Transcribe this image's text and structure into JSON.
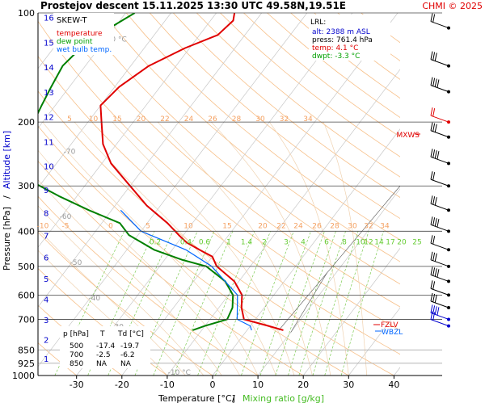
{
  "header": {
    "title": "Prostejov   descent   15.11.2025 13:30 UTC  49.58N,19.51E",
    "copyright": "CHMI © 2025"
  },
  "legend": {
    "title": "SKEW-T",
    "items": [
      {
        "label": "temperature",
        "color": "#e00000"
      },
      {
        "label": "dew point",
        "color": "#008000"
      },
      {
        "label": "wet bulb temp.",
        "color": "#0066ff"
      }
    ]
  },
  "lrl": {
    "title": "LRL:",
    "lines": [
      {
        "text": "alt: 2388 m ASL",
        "color": "#0000cc"
      },
      {
        "text": "press: 761.4 hPa",
        "color": "#000000"
      },
      {
        "text": "temp: 4.1 °C",
        "color": "#e00000"
      },
      {
        "text": "dwpt: -3.3 °C",
        "color": "#00a000"
      }
    ]
  },
  "markers": {
    "mxws": "MXWS",
    "fzlv": "FZLV",
    "wbzl": "WBZL"
  },
  "table": {
    "headers": [
      "p [hPa]",
      "T",
      "Td [°C]"
    ],
    "rows": [
      [
        "500",
        "-17.4",
        "-19.7"
      ],
      [
        "700",
        "-2.5",
        "-6.2"
      ],
      [
        "850",
        "NA",
        "NA"
      ]
    ]
  },
  "axes": {
    "xlabel_temp": "Temperature [°C]",
    "xlabel_sep": "/",
    "xlabel_mix": "Mixing ratio [g/kg]",
    "ylabel_pres": "Pressure [hPa]",
    "ylabel_sep": "/",
    "ylabel_alt": "Altitude [km]"
  },
  "chart_data": {
    "type": "line",
    "diagram": "skew-t",
    "pressure_levels": [
      100,
      200,
      300,
      400,
      500,
      600,
      700,
      850,
      925,
      1000
    ],
    "pressure_lines_grey": [
      850,
      925
    ],
    "x_ticks": [
      -30,
      -20,
      -10,
      0,
      10,
      20,
      30,
      40
    ],
    "xlim": [
      -35,
      50
    ],
    "ylim": [
      1000,
      100
    ],
    "altitude_ticks_km": [
      1,
      2,
      3,
      4,
      5,
      6,
      7,
      8,
      9,
      10,
      11,
      12,
      13,
      14,
      15,
      16
    ],
    "isotherm_labels": [
      {
        "t": -80,
        "text": "-80 °C"
      },
      {
        "t": -70,
        "text": "-70"
      },
      {
        "t": -60,
        "text": "-60"
      },
      {
        "t": -50,
        "text": "-50"
      },
      {
        "t": -40,
        "text": "-40"
      },
      {
        "t": -30,
        "text": "-30"
      },
      {
        "t": -20,
        "text": "-20"
      },
      {
        "t": -10,
        "text": "-10 °C"
      }
    ],
    "adiabat_labels_200": [
      "5",
      "10",
      "15",
      "20",
      "22",
      "24",
      "26",
      "28",
      "30",
      "32",
      "34"
    ],
    "adiabat_labels_400": [
      "-10",
      "-5",
      "0",
      "5",
      "10",
      "15",
      "20",
      "22",
      "24",
      "26",
      "28",
      "30",
      "32",
      "34"
    ],
    "mixing_ratio_labels": [
      "0.2",
      "0.4",
      "0.6",
      "1",
      "1.4",
      "2",
      "3",
      "4",
      "6",
      "8",
      "10",
      "12",
      "14",
      "17",
      "20",
      "25"
    ],
    "mixing_ratio_values": [
      0.2,
      0.4,
      0.6,
      1,
      1.4,
      2,
      3,
      4,
      6,
      8,
      10,
      12,
      14,
      17,
      20,
      25
    ],
    "series": [
      {
        "name": "temperature",
        "color": "#e00000",
        "points": [
          [
            100,
            -56
          ],
          [
            105,
            -55
          ],
          [
            115,
            -56
          ],
          [
            125,
            -61
          ],
          [
            140,
            -66
          ],
          [
            160,
            -69
          ],
          [
            180,
            -70
          ],
          [
            200,
            -67
          ],
          [
            230,
            -63
          ],
          [
            260,
            -58
          ],
          [
            300,
            -50
          ],
          [
            340,
            -43
          ],
          [
            380,
            -35.5
          ],
          [
            410,
            -31
          ],
          [
            430,
            -28
          ],
          [
            450,
            -24
          ],
          [
            470,
            -20
          ],
          [
            500,
            -17.4
          ],
          [
            550,
            -11
          ],
          [
            600,
            -7
          ],
          [
            650,
            -5
          ],
          [
            700,
            -2.5
          ],
          [
            730,
            4
          ],
          [
            750,
            8
          ]
        ]
      },
      {
        "name": "dew point",
        "color": "#008000",
        "points": [
          [
            100,
            -78
          ],
          [
            110,
            -81
          ],
          [
            125,
            -84
          ],
          [
            140,
            -85
          ],
          [
            160,
            -84
          ],
          [
            180,
            -83
          ],
          [
            200,
            -82
          ],
          [
            215,
            -82
          ],
          [
            240,
            -77
          ],
          [
            260,
            -75
          ],
          [
            290,
            -73
          ],
          [
            320,
            -64
          ],
          [
            350,
            -55
          ],
          [
            380,
            -46
          ],
          [
            410,
            -42
          ],
          [
            450,
            -34
          ],
          [
            480,
            -26
          ],
          [
            500,
            -19.7
          ],
          [
            550,
            -13
          ],
          [
            600,
            -9
          ],
          [
            650,
            -7
          ],
          [
            700,
            -6.2
          ],
          [
            730,
            -10
          ],
          [
            750,
            -12
          ]
        ]
      },
      {
        "name": "wet bulb temp.",
        "color": "#0066ff",
        "points": [
          [
            350,
            -48
          ],
          [
            400,
            -40
          ],
          [
            450,
            -27
          ],
          [
            500,
            -18.5
          ],
          [
            600,
            -8
          ],
          [
            700,
            -4
          ],
          [
            730,
            0
          ],
          [
            750,
            1
          ]
        ]
      }
    ],
    "wind_pressures": [
      110,
      140,
      165,
      200,
      220,
      260,
      300,
      350,
      400,
      450,
      500,
      550,
      600,
      650,
      700,
      730
    ]
  }
}
